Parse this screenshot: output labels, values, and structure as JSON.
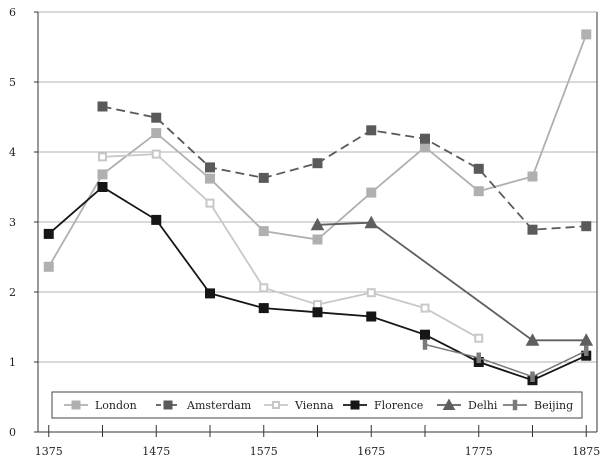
{
  "chart_data": {
    "type": "line",
    "title": "",
    "xlabel": "",
    "ylabel": "",
    "xlim": [
      1365,
      1885
    ],
    "ylim": [
      0,
      6
    ],
    "x_ticks": [
      1375,
      1425,
      1475,
      1525,
      1575,
      1625,
      1675,
      1725,
      1775,
      1825,
      1875
    ],
    "x_tick_labels": [
      "1375",
      "",
      "1475",
      "",
      "1575",
      "",
      "1675",
      "",
      "1775",
      "",
      "1875"
    ],
    "y_ticks": [
      0,
      1,
      2,
      3,
      4,
      5,
      6
    ],
    "y_tick_labels": [
      "0",
      "1",
      "2",
      "3",
      "4",
      "5",
      "6"
    ],
    "grid": "horizontal",
    "legend_position": "bottom",
    "series": [
      {
        "name": "London",
        "color": "#b0b0b0",
        "dash": "solid",
        "marker": "square-filled",
        "points": [
          [
            1375,
            2.36
          ],
          [
            1425,
            3.68
          ],
          [
            1475,
            4.27
          ],
          [
            1525,
            3.62
          ],
          [
            1575,
            2.87
          ],
          [
            1625,
            2.75
          ],
          [
            1675,
            3.42
          ],
          [
            1725,
            4.07
          ],
          [
            1775,
            3.44
          ],
          [
            1825,
            3.65
          ],
          [
            1875,
            5.68
          ]
        ]
      },
      {
        "name": "Amsterdam",
        "color": "#5a5a5a",
        "dash": "dashed",
        "marker": "square-filled",
        "points": [
          [
            1425,
            4.65
          ],
          [
            1475,
            4.49
          ],
          [
            1525,
            3.78
          ],
          [
            1575,
            3.63
          ],
          [
            1625,
            3.84
          ],
          [
            1675,
            4.31
          ],
          [
            1725,
            4.19
          ],
          [
            1775,
            3.76
          ],
          [
            1825,
            2.89
          ],
          [
            1875,
            2.94
          ]
        ]
      },
      {
        "name": "Vienna",
        "color": "#c8c8c8",
        "dash": "solid",
        "marker": "square-open",
        "points": [
          [
            1425,
            3.93
          ],
          [
            1475,
            3.97
          ],
          [
            1525,
            3.27
          ],
          [
            1575,
            2.06
          ],
          [
            1625,
            1.82
          ],
          [
            1675,
            1.99
          ],
          [
            1725,
            1.77
          ],
          [
            1775,
            1.34
          ]
        ]
      },
      {
        "name": "Florence",
        "color": "#161616",
        "dash": "solid",
        "marker": "square-filled",
        "points": [
          [
            1375,
            2.83
          ],
          [
            1425,
            3.5
          ],
          [
            1475,
            3.03
          ],
          [
            1525,
            1.98
          ],
          [
            1575,
            1.77
          ],
          [
            1625,
            1.71
          ],
          [
            1675,
            1.65
          ],
          [
            1725,
            1.39
          ],
          [
            1775,
            1.0
          ],
          [
            1825,
            0.74
          ],
          [
            1875,
            1.09
          ]
        ]
      },
      {
        "name": "Delhi",
        "color": "#5f5f5f",
        "dash": "solid",
        "marker": "triangle",
        "points": [
          [
            1625,
            2.96
          ],
          [
            1675,
            2.99
          ],
          [
            1825,
            1.31
          ],
          [
            1875,
            1.31
          ]
        ]
      },
      {
        "name": "Beijing",
        "color": "#7a7a7a",
        "dash": "solid",
        "marker": "bar",
        "points": [
          [
            1725,
            1.25
          ],
          [
            1775,
            1.06
          ],
          [
            1825,
            0.79
          ],
          [
            1875,
            1.16
          ]
        ]
      }
    ]
  }
}
